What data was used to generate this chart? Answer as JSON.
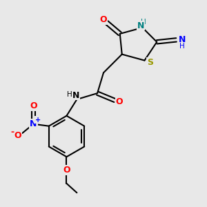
{
  "bg_color": "#e8e8e8",
  "bond_color": "#000000",
  "bond_width": 1.5,
  "figsize": [
    3.0,
    3.0
  ],
  "dpi": 100,
  "xlim": [
    0,
    10
  ],
  "ylim": [
    0,
    10
  ]
}
